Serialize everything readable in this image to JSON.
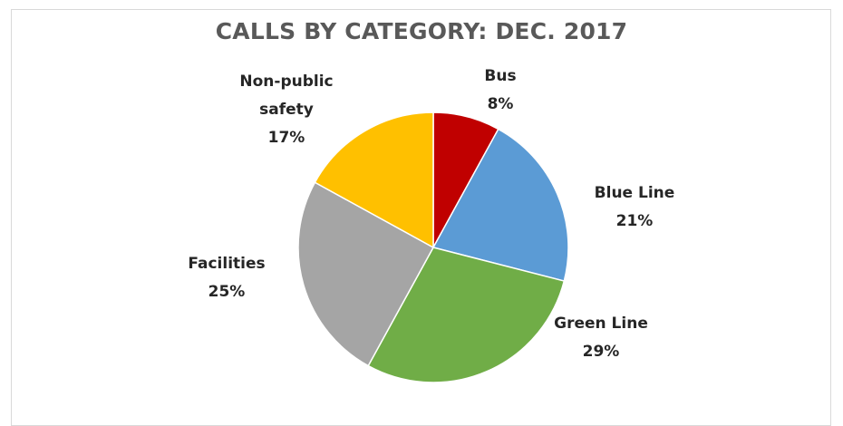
{
  "chart_data": {
    "type": "pie",
    "title": "CALLS BY CATEGORY: DEC. 2017",
    "slices": [
      {
        "category": "Bus",
        "label_lines": [
          "Bus"
        ],
        "value": 8,
        "value_label": "8%",
        "color": "#c00000"
      },
      {
        "category": "Blue Line",
        "label_lines": [
          "Blue Line"
        ],
        "value": 21,
        "value_label": "21%",
        "color": "#5b9bd5"
      },
      {
        "category": "Green Line",
        "label_lines": [
          "Green Line"
        ],
        "value": 29,
        "value_label": "29%",
        "color": "#70ad47"
      },
      {
        "category": "Facilities",
        "label_lines": [
          "Facilities"
        ],
        "value": 25,
        "value_label": "25%",
        "color": "#a5a5a5"
      },
      {
        "category": "Non-public safety",
        "label_lines": [
          "Non-public",
          "safety"
        ],
        "value": 17,
        "value_label": "17%",
        "color": "#ffc000"
      }
    ],
    "legend": "none",
    "start_angle": "12 o'clock",
    "direction": "clockwise"
  }
}
